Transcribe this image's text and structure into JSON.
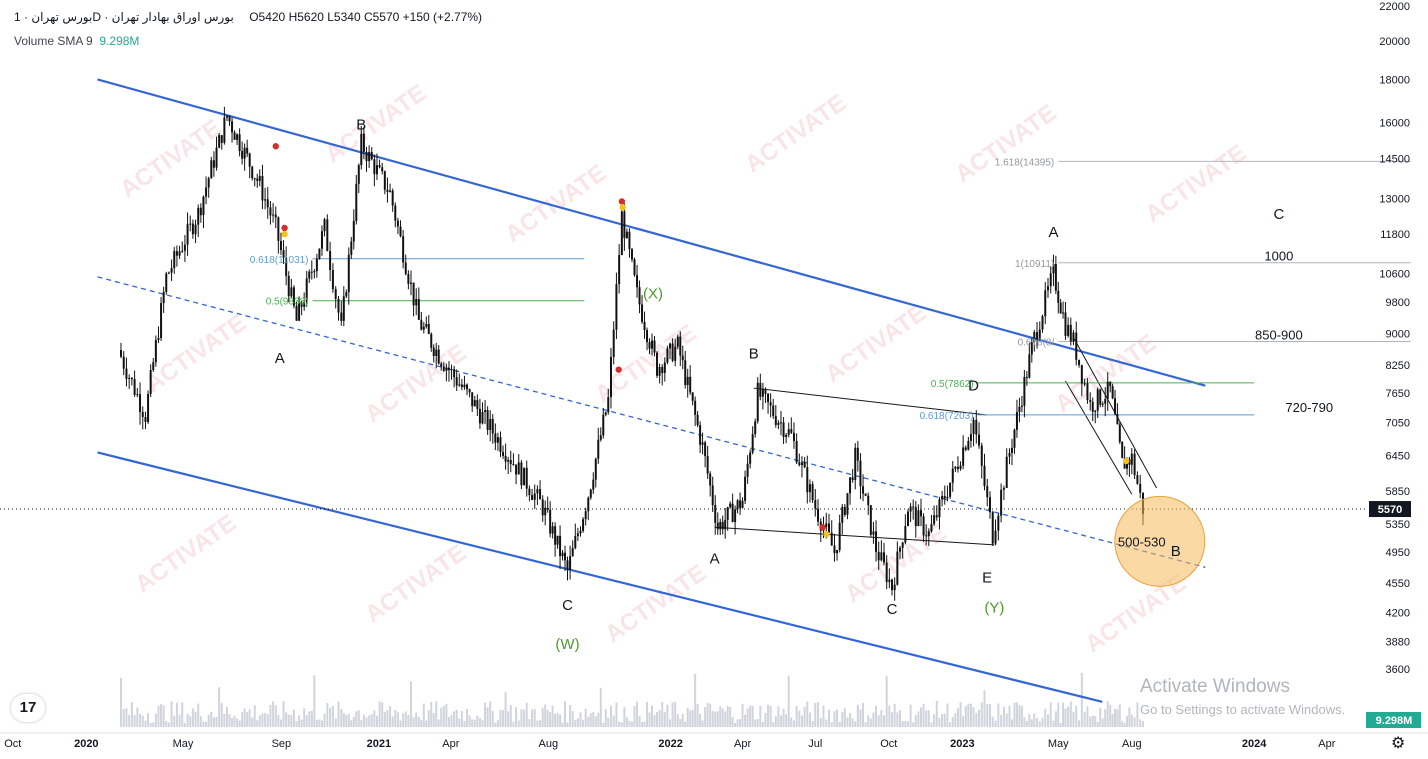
{
  "header": {
    "title": "بورس تهران · 1D · بورس اوراق بهادار تهران",
    "ohlc": "O5420  H5620  L5340  C5570  +150 (+2.77%)",
    "volume_label": "Volume  SMA 9",
    "volume_value": "9.298M"
  },
  "logo_text": "17",
  "watermark": "ACTIVATE",
  "activate_windows": {
    "line1": "Activate Windows",
    "line2": "Go to Settings to activate Windows."
  },
  "colors": {
    "channel": "#3466d4",
    "fib_blue": "#5b9bd5",
    "fib_green": "#4caf50",
    "candle": "#111111",
    "volume": "#d1d4dc",
    "target_circle": "#f6b95a",
    "marker_red": "#d32f2f",
    "marker_yellow": "#f2c21b",
    "wave_green": "#4c9a2a",
    "price_tag": "#131722",
    "volume_tag": "#22ab94"
  },
  "chart_data": {
    "type": "candlestick",
    "title": "بورس تهران · 1D · بورس اوراق بهادار تهران",
    "scale": "log",
    "ylim": [
      3200,
      22000
    ],
    "last_price": "5570",
    "last_volume": "9.298M",
    "grid": false,
    "y_tick_labels": [
      "22000",
      "20000",
      "18000",
      "16000",
      "14500",
      "13000",
      "11800",
      "10600",
      "9800",
      "9000",
      "8250",
      "7650",
      "7050",
      "6450",
      "5850",
      "5350",
      "4950",
      "4550",
      "4200",
      "3880",
      "3600"
    ],
    "x_tick_labels": [
      {
        "label": "Oct",
        "date": "2019-10-01"
      },
      {
        "label": "2020",
        "date": "2020-01-01"
      },
      {
        "label": "May",
        "date": "2020-05-01"
      },
      {
        "label": "Sep",
        "date": "2020-09-01"
      },
      {
        "label": "2021",
        "date": "2021-01-01"
      },
      {
        "label": "Apr",
        "date": "2021-04-01"
      },
      {
        "label": "Aug",
        "date": "2021-08-01"
      },
      {
        "label": "2022",
        "date": "2022-01-01"
      },
      {
        "label": "Apr",
        "date": "2022-04-01"
      },
      {
        "label": "Jul",
        "date": "2022-07-01"
      },
      {
        "label": "Oct",
        "date": "2022-10-01"
      },
      {
        "label": "2023",
        "date": "2023-01-01"
      },
      {
        "label": "May",
        "date": "2023-05-01"
      },
      {
        "label": "Aug",
        "date": "2023-08-01"
      },
      {
        "label": "2024",
        "date": "2024-01-01"
      },
      {
        "label": "Apr",
        "date": "2024-04-01"
      }
    ],
    "price_path": [
      {
        "date": "2020-02-10",
        "price": 8600
      },
      {
        "date": "2020-03-15",
        "price": 7200
      },
      {
        "date": "2020-04-10",
        "price": 10500
      },
      {
        "date": "2020-05-20",
        "price": 12500
      },
      {
        "date": "2020-06-25",
        "price": 16300
      },
      {
        "date": "2020-08-05",
        "price": 13500
      },
      {
        "date": "2020-08-25",
        "price": 12000
      },
      {
        "date": "2020-09-20",
        "price": 9300
      },
      {
        "date": "2020-10-25",
        "price": 12000
      },
      {
        "date": "2020-11-15",
        "price": 9100
      },
      {
        "date": "2020-12-10",
        "price": 15100
      },
      {
        "date": "2021-01-15",
        "price": 13200
      },
      {
        "date": "2021-02-20",
        "price": 9300
      },
      {
        "date": "2021-03-20",
        "price": 8400
      },
      {
        "date": "2021-05-01",
        "price": 7400
      },
      {
        "date": "2021-06-15",
        "price": 6400
      },
      {
        "date": "2021-07-25",
        "price": 5600
      },
      {
        "date": "2021-08-25",
        "price": 4700
      },
      {
        "date": "2021-09-20",
        "price": 5800
      },
      {
        "date": "2021-10-15",
        "price": 7500
      },
      {
        "date": "2021-11-01",
        "price": 12400
      },
      {
        "date": "2021-11-20",
        "price": 10000
      },
      {
        "date": "2021-12-15",
        "price": 8200
      },
      {
        "date": "2022-01-10",
        "price": 8700
      },
      {
        "date": "2022-02-10",
        "price": 6600
      },
      {
        "date": "2022-03-01",
        "price": 5300
      },
      {
        "date": "2022-04-01",
        "price": 5700
      },
      {
        "date": "2022-04-20",
        "price": 7650
      },
      {
        "date": "2022-06-01",
        "price": 6800
      },
      {
        "date": "2022-07-01",
        "price": 5600
      },
      {
        "date": "2022-07-25",
        "price": 4950
      },
      {
        "date": "2022-08-20",
        "price": 6400
      },
      {
        "date": "2022-09-15",
        "price": 5000
      },
      {
        "date": "2022-10-05",
        "price": 4500
      },
      {
        "date": "2022-10-25",
        "price": 5600
      },
      {
        "date": "2022-11-20",
        "price": 5200
      },
      {
        "date": "2022-12-20",
        "price": 6100
      },
      {
        "date": "2023-01-15",
        "price": 7100
      },
      {
        "date": "2023-02-08",
        "price": 5200
      },
      {
        "date": "2023-03-01",
        "price": 6500
      },
      {
        "date": "2023-04-01",
        "price": 8900
      },
      {
        "date": "2023-04-25",
        "price": 10600
      },
      {
        "date": "2023-05-10",
        "price": 9200
      },
      {
        "date": "2023-05-20",
        "price": 8800
      },
      {
        "date": "2023-06-10",
        "price": 7400
      },
      {
        "date": "2023-07-05",
        "price": 7700
      },
      {
        "date": "2023-07-20",
        "price": 6300
      },
      {
        "date": "2023-08-01",
        "price": 6400
      },
      {
        "date": "2023-08-15",
        "price": 5570
      }
    ],
    "channel_lines": [
      {
        "kind": "upper",
        "from": {
          "date": "2020-01-15",
          "price": 18000
        },
        "to": {
          "date": "2023-11-01",
          "price": 7800
        }
      },
      {
        "kind": "lower",
        "from": {
          "date": "2020-01-15",
          "price": 6500
        },
        "to": {
          "date": "2023-06-25",
          "price": 3290
        }
      },
      {
        "kind": "mid",
        "from": {
          "date": "2020-01-15",
          "price": 10500
        },
        "to": {
          "date": "2023-11-01",
          "price": 4750
        }
      }
    ],
    "triangle_lines": [
      {
        "from": {
          "date": "2022-04-15",
          "price": 7750
        },
        "to": {
          "date": "2023-02-01",
          "price": 7200
        }
      },
      {
        "from": {
          "date": "2022-02-25",
          "price": 5300
        },
        "to": {
          "date": "2023-02-10",
          "price": 5050
        }
      }
    ],
    "wedge_lines": [
      {
        "from": {
          "date": "2023-05-20",
          "price": 8900
        },
        "to": {
          "date": "2023-09-01",
          "price": 5900
        }
      },
      {
        "from": {
          "date": "2023-05-10",
          "price": 7900
        },
        "to": {
          "date": "2023-08-01",
          "price": 5800
        }
      }
    ],
    "fib_levels": [
      {
        "label": "0.618(11031)",
        "price": 11031,
        "color": "#5b9bd5",
        "from": "2020-10-10",
        "to": "2021-09-15"
      },
      {
        "label": "0.5(9838)",
        "price": 9838,
        "color": "#4caf50",
        "from": "2020-10-10",
        "to": "2021-09-15"
      },
      {
        "label": "1.618(14395)",
        "price": 14395,
        "color": "#b2b5be",
        "from": "2023-05-01",
        "to": "2024-07-15"
      },
      {
        "label": "1(10911)",
        "price": 10911,
        "color": "#b2b5be",
        "from": "2023-05-01",
        "to": "2024-07-15"
      },
      {
        "label": "0.618(8/",
        "price": 8800,
        "color": "#b2b5be",
        "from": "2023-05-01",
        "to": "2024-07-15"
      },
      {
        "label": "0.5(7862)",
        "price": 7862,
        "color": "#4caf50",
        "from": "2023-01-20",
        "to": "2024-01-01"
      },
      {
        "label": "0.618(7203)",
        "price": 7203,
        "color": "#5b9bd5",
        "from": "2023-01-20",
        "to": "2024-01-01"
      }
    ],
    "wave_labels": [
      {
        "text": "B",
        "date": "2020-12-10",
        "price": 15700,
        "color": "#131722"
      },
      {
        "text": "A",
        "date": "2020-08-30",
        "price": 8300,
        "color": "#131722"
      },
      {
        "text": "C",
        "date": "2021-08-25",
        "price": 4230,
        "color": "#131722"
      },
      {
        "text": "(W)",
        "date": "2021-08-25",
        "price": 3800,
        "color": "#4c9a2a"
      },
      {
        "text": "(X)",
        "date": "2021-12-10",
        "price": 9900,
        "color": "#4c9a2a"
      },
      {
        "text": "A",
        "date": "2022-02-25",
        "price": 4800,
        "color": "#131722"
      },
      {
        "text": "B",
        "date": "2022-04-15",
        "price": 8400,
        "color": "#131722"
      },
      {
        "text": "C",
        "date": "2022-10-05",
        "price": 4180,
        "color": "#131722"
      },
      {
        "text": "D",
        "date": "2023-01-15",
        "price": 7700,
        "color": "#131722"
      },
      {
        "text": "E",
        "date": "2023-02-01",
        "price": 4560,
        "color": "#131722"
      },
      {
        "text": "(Y)",
        "date": "2023-02-10",
        "price": 4200,
        "color": "#4c9a2a"
      },
      {
        "text": "A",
        "date": "2023-04-25",
        "price": 11700,
        "color": "#131722"
      },
      {
        "text": "B",
        "date": "2023-09-25",
        "price": 4900,
        "color": "#131722"
      },
      {
        "text": "C",
        "date": "2024-02-01",
        "price": 12300,
        "color": "#131722"
      }
    ],
    "target_zone": {
      "date": "2023-09-05",
      "price": 5100,
      "label": "500-530"
    },
    "target_labels": [
      {
        "text": "1000",
        "date": "2024-02-01",
        "price": 11100
      },
      {
        "text": "850-900",
        "date": "2024-02-01",
        "price": 8950
      },
      {
        "text": "720-790",
        "date": "2024-03-10",
        "price": 7340
      }
    ],
    "markers": [
      {
        "date": "2020-08-25",
        "price": 15000,
        "color": "#d32f2f"
      },
      {
        "date": "2020-09-05",
        "price": 12000,
        "color": "#d32f2f"
      },
      {
        "date": "2020-09-05",
        "price": 11800,
        "color": "#f2c21b"
      },
      {
        "date": "2021-11-01",
        "price": 12900,
        "color": "#d32f2f"
      },
      {
        "date": "2021-11-02",
        "price": 12700,
        "color": "#f2c21b"
      },
      {
        "date": "2021-10-28",
        "price": 8150,
        "color": "#d32f2f"
      },
      {
        "date": "2022-07-10",
        "price": 5300,
        "color": "#d32f2f"
      },
      {
        "date": "2022-07-15",
        "price": 5200,
        "color": "#f2c21b"
      },
      {
        "date": "2023-07-25",
        "price": 6350,
        "color": "#f2c21b"
      }
    ]
  }
}
